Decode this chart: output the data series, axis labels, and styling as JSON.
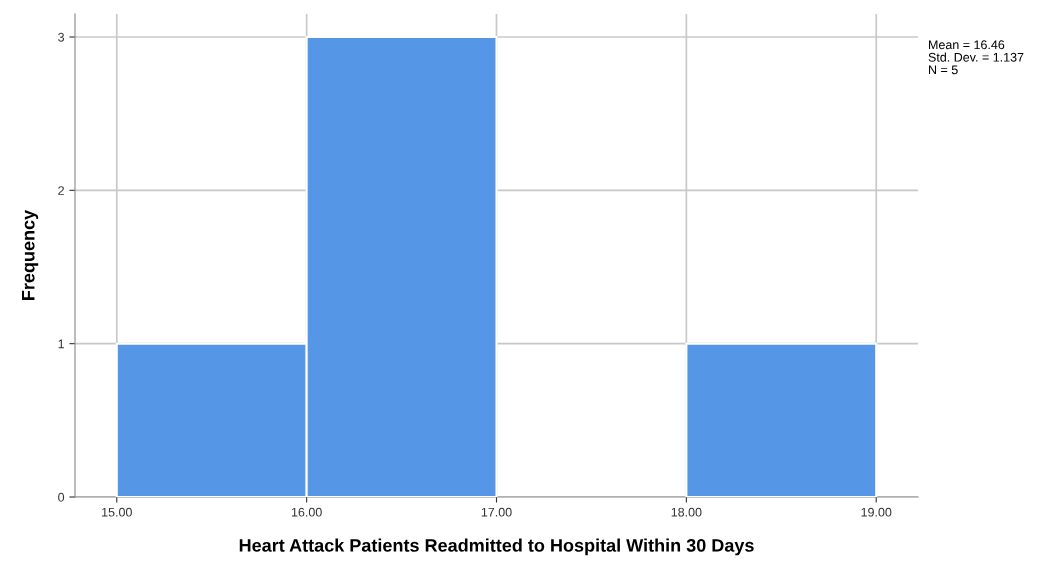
{
  "chart_data": {
    "type": "histogram",
    "xlabel": "Heart Attack Patients Readmitted to Hospital Within 30 Days",
    "ylabel": "Frequency",
    "bins": [
      15,
      16,
      17,
      18,
      19
    ],
    "values": [
      1,
      3,
      0,
      1
    ],
    "color": "#5596e6",
    "xlim": [
      14.78,
      19.22
    ],
    "xticks": [
      {
        "value": 15,
        "label": "15.00"
      },
      {
        "value": 16,
        "label": "16.00"
      },
      {
        "value": 17,
        "label": "17.00"
      },
      {
        "value": 18,
        "label": "18.00"
      },
      {
        "value": 19,
        "label": "19.00"
      }
    ],
    "ylim": [
      0,
      3.15
    ],
    "yticks": [
      0,
      1,
      2,
      3
    ],
    "grid": true,
    "annotations": [
      "Mean = 16.46",
      "Std. Dev. = 1.137",
      "N = 5"
    ]
  }
}
